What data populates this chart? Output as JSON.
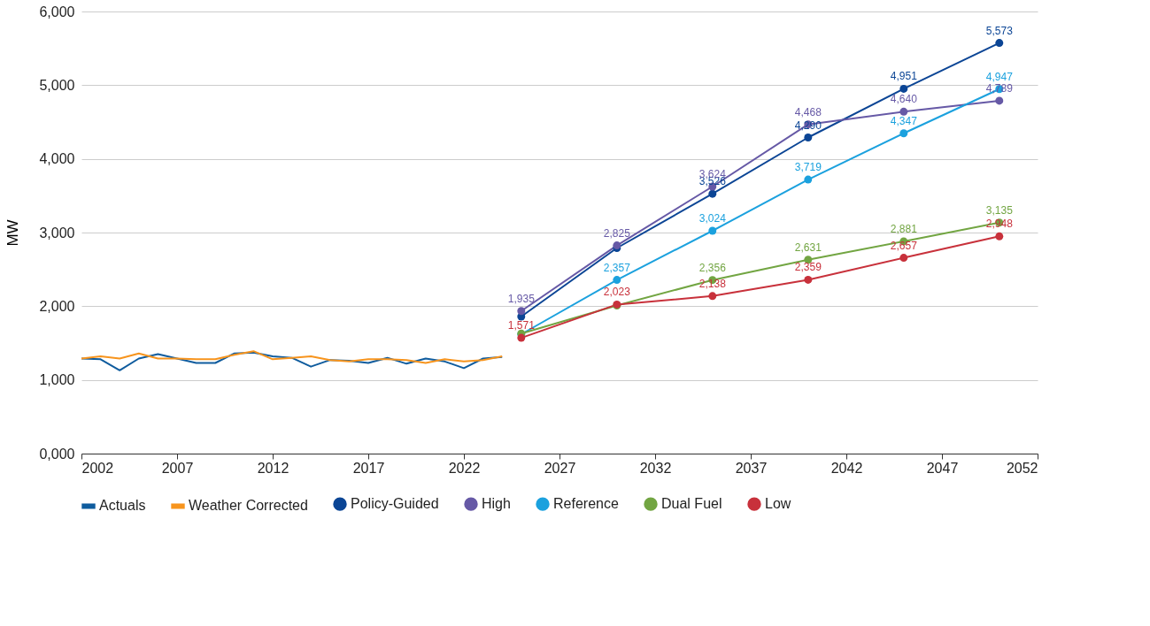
{
  "chart_data": {
    "type": "line",
    "ylabel": "MW",
    "xlim": [
      2002,
      2052
    ],
    "xticks": [
      2002,
      2007,
      2012,
      2017,
      2022,
      2027,
      2032,
      2037,
      2042,
      2047,
      2052
    ],
    "ylim": [
      0,
      6000
    ],
    "yticks": [
      {
        "value": 0,
        "label": "0,000"
      },
      {
        "value": 1000,
        "label": "1,000"
      },
      {
        "value": 2000,
        "label": "2,000"
      },
      {
        "value": 3000,
        "label": "3,000"
      },
      {
        "value": 4000,
        "label": "4,000"
      },
      {
        "value": 5000,
        "label": "5,000"
      },
      {
        "value": 6000,
        "label": "6,000"
      }
    ],
    "grid": "y",
    "legend": "bottom",
    "line_style": "solid",
    "series": [
      {
        "name": "Actuals",
        "color": "#0f5c9e",
        "marker": "none",
        "x": [
          2002,
          2003,
          2004,
          2005,
          2006,
          2007,
          2008,
          2009,
          2010,
          2011,
          2012,
          2013,
          2014,
          2015,
          2016,
          2017,
          2018,
          2019,
          2020,
          2021,
          2022,
          2023,
          2024
        ],
        "values": [
          1290,
          1280,
          1130,
          1290,
          1350,
          1290,
          1230,
          1230,
          1360,
          1370,
          1320,
          1300,
          1180,
          1270,
          1260,
          1230,
          1300,
          1220,
          1290,
          1250,
          1160,
          1290,
          1310
        ]
      },
      {
        "name": "Weather Corrected",
        "color": "#f7941d",
        "marker": "none",
        "x": [
          2002,
          2003,
          2004,
          2005,
          2006,
          2007,
          2008,
          2009,
          2010,
          2011,
          2012,
          2013,
          2014,
          2015,
          2016,
          2017,
          2018,
          2019,
          2020,
          2021,
          2022,
          2023,
          2024
        ],
        "values": [
          1290,
          1320,
          1290,
          1360,
          1290,
          1290,
          1280,
          1280,
          1340,
          1390,
          1280,
          1300,
          1320,
          1270,
          1250,
          1280,
          1280,
          1270,
          1230,
          1280,
          1250,
          1270,
          1320
        ]
      },
      {
        "name": "Policy-Guided",
        "color": "#0b4595",
        "marker": "circle",
        "x": [
          2025,
          2030,
          2035,
          2040,
          2045,
          2050
        ],
        "values": [
          1860,
          2790,
          3526,
          4290,
          4951,
          5573
        ],
        "value_labels": [
          null,
          null,
          "3,526",
          "4,290",
          "4,951",
          "5,573"
        ]
      },
      {
        "name": "High",
        "color": "#6659a6",
        "marker": "circle",
        "x": [
          2025,
          2030,
          2035,
          2040,
          2045,
          2050
        ],
        "values": [
          1935,
          2825,
          3624,
          4468,
          4640,
          4789
        ],
        "value_labels": [
          "1,935",
          "2,825",
          "3,624",
          "4,468",
          "4,640",
          "4,789"
        ]
      },
      {
        "name": "Reference",
        "color": "#1ba1de",
        "marker": "circle",
        "x": [
          2025,
          2030,
          2035,
          2040,
          2045,
          2050
        ],
        "values": [
          1620,
          2357,
          3024,
          3719,
          4347,
          4947
        ],
        "value_labels": [
          null,
          "2,357",
          "3,024",
          "3,719",
          "4,347",
          "4,947"
        ]
      },
      {
        "name": "Dual Fuel",
        "color": "#72a542",
        "marker": "circle",
        "x": [
          2025,
          2030,
          2035,
          2040,
          2045,
          2050
        ],
        "values": [
          1630,
          2010,
          2356,
          2631,
          2881,
          3135
        ],
        "value_labels": [
          null,
          null,
          "2,356",
          "2,631",
          "2,881",
          "3,135"
        ]
      },
      {
        "name": "Low",
        "color": "#c8313b",
        "marker": "circle",
        "x": [
          2025,
          2030,
          2035,
          2040,
          2045,
          2050
        ],
        "values": [
          1571,
          2023,
          2138,
          2359,
          2657,
          2948
        ],
        "value_labels": [
          "1,571",
          "2,023",
          "2,138",
          "2,359",
          "2,657",
          "2,948"
        ]
      }
    ]
  }
}
